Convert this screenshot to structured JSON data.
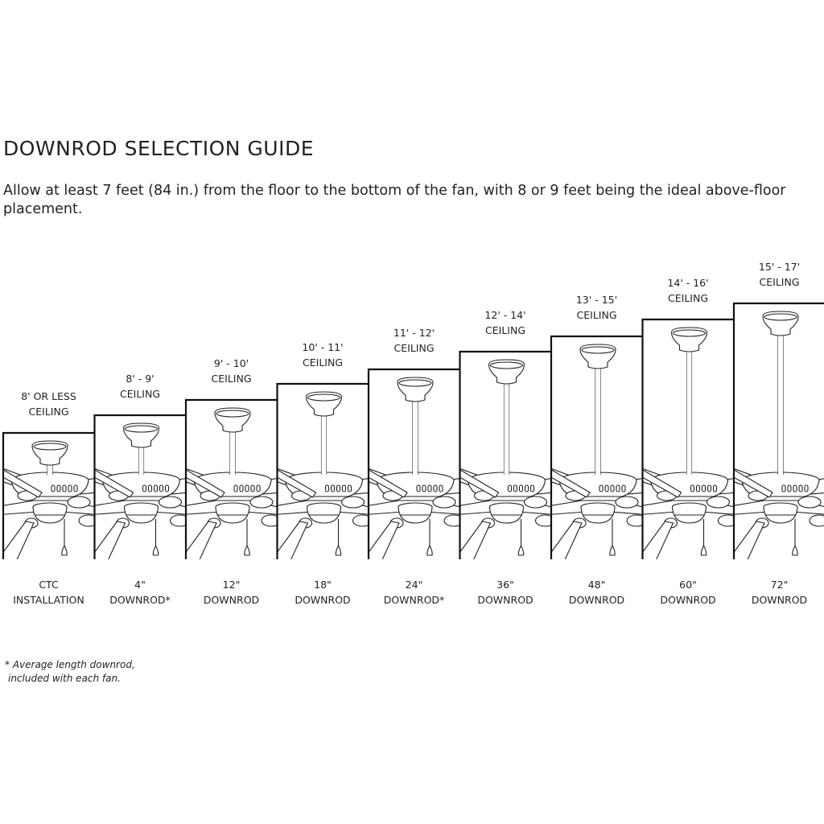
{
  "title": "DOWNROD SELECTION GUIDE",
  "intro": "Allow at least 7 feet (84 in.) from the floor to the bottom of the fan, with 8 or 9 feet being the ideal above-floor placement.",
  "columns": [
    {
      "ceiling": [
        "8' OR LESS",
        "CEILING"
      ],
      "rod": [
        "CTC",
        "INSTALLATION"
      ],
      "rod_length_in": 0
    },
    {
      "ceiling": [
        "8' - 9'",
        "CEILING"
      ],
      "rod": [
        "4\"",
        "DOWNROD*"
      ],
      "rod_length_in": 4
    },
    {
      "ceiling": [
        "9' - 10'",
        "CEILING"
      ],
      "rod": [
        "12\"",
        "DOWNROD"
      ],
      "rod_length_in": 12
    },
    {
      "ceiling": [
        "10' - 11'",
        "CEILING"
      ],
      "rod": [
        "18\"",
        "DOWNROD"
      ],
      "rod_length_in": 18
    },
    {
      "ceiling": [
        "11' - 12'",
        "CEILING"
      ],
      "rod": [
        "24\"",
        "DOWNROD*"
      ],
      "rod_length_in": 24
    },
    {
      "ceiling": [
        "12' - 14'",
        "CEILING"
      ],
      "rod": [
        "36\"",
        "DOWNROD"
      ],
      "rod_length_in": 36
    },
    {
      "ceiling": [
        "13' - 15'",
        "CEILING"
      ],
      "rod": [
        "48\"",
        "DOWNROD"
      ],
      "rod_length_in": 48
    },
    {
      "ceiling": [
        "14' - 16'",
        "CEILING"
      ],
      "rod": [
        "60\"",
        "DOWNROD"
      ],
      "rod_length_in": 60
    },
    {
      "ceiling": [
        "15' - 17'",
        "CEILING"
      ],
      "rod": [
        "72\"",
        "DOWNROD"
      ],
      "rod_length_in": 72
    }
  ],
  "footnote": [
    "* Average length downrod,",
    "included with each fan."
  ]
}
